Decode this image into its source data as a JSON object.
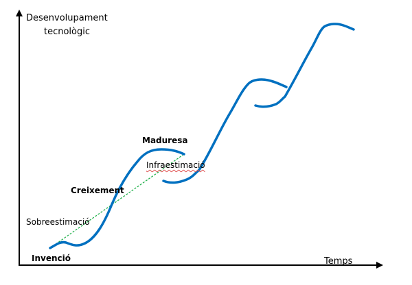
{
  "diagram": {
    "y_axis_label_line1": "Desenvolupament",
    "y_axis_label_line2": "tecnològic",
    "x_axis_label": "Temps",
    "stages": {
      "invention": "Invenció",
      "growth": "Creixement",
      "maturity": "Maduresa"
    },
    "annotations": {
      "overestimation": "Sobreestimació",
      "underestimation": "Infraestimació"
    },
    "colors": {
      "curve": "#0070c0",
      "trend_line": "#22b14c",
      "axes": "#000000"
    }
  }
}
